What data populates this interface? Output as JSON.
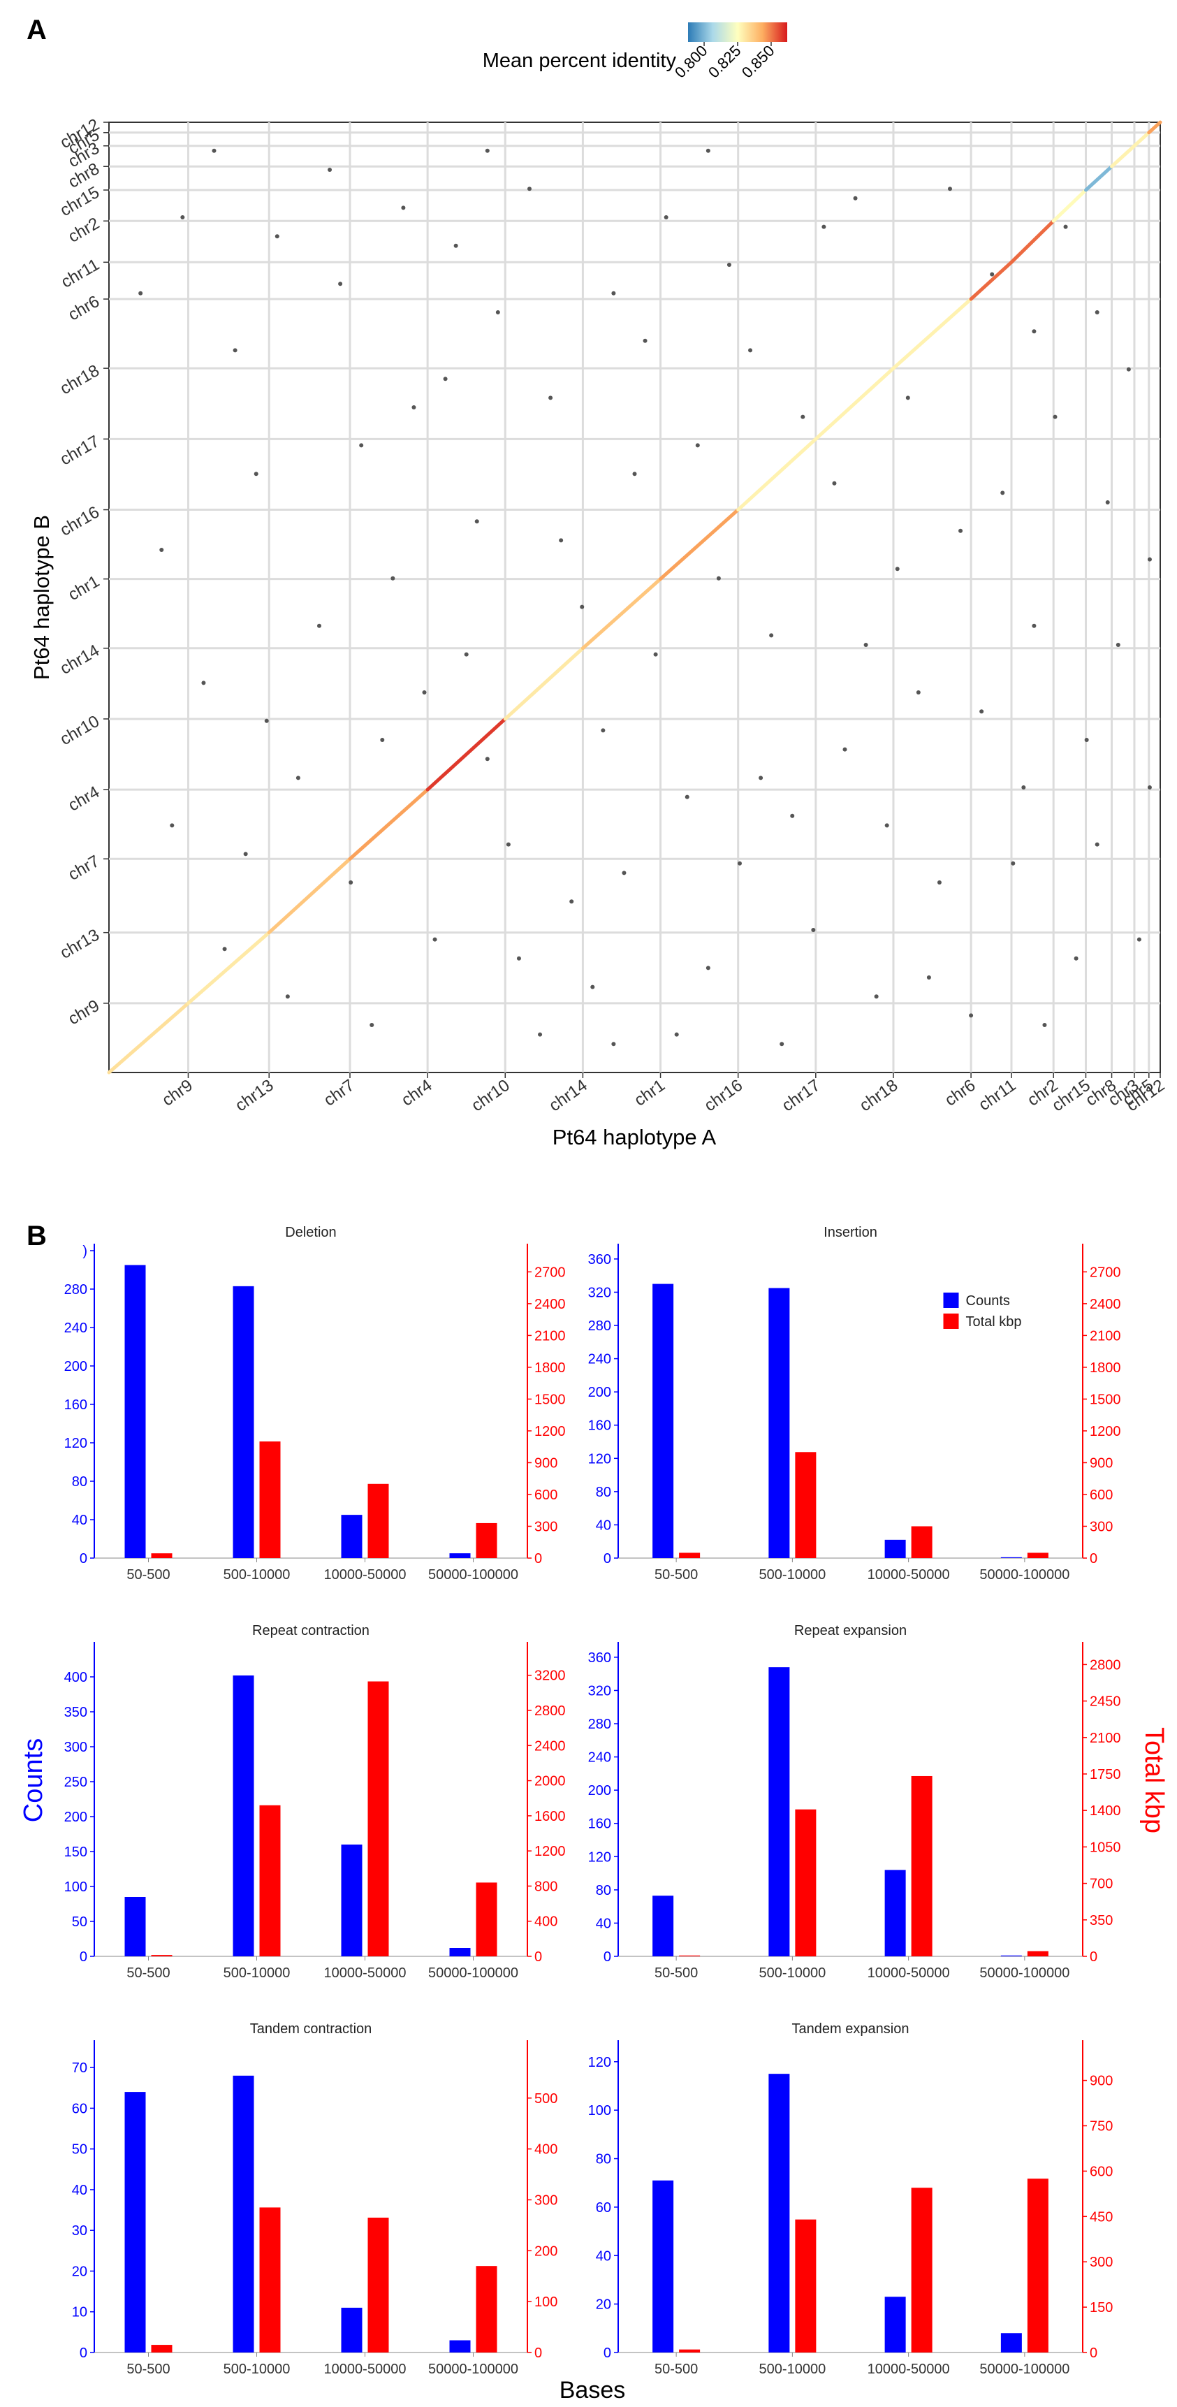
{
  "panel_a": {
    "label": "A",
    "colorbar": {
      "title": "Mean percent identity",
      "ticks": [
        "0.800",
        "0.825",
        "0.850"
      ],
      "range": [
        0.788,
        0.862
      ],
      "colors": [
        "#2c7bb6",
        "#abd9e9",
        "#ffffbf",
        "#fdae61",
        "#d7191c"
      ]
    },
    "xlabel": "Pt64 haplotype A",
    "ylabel": "Pt64 haplotype B",
    "x_chromosomes": [
      "chr9",
      "chr13",
      "chr7",
      "chr4",
      "chr10",
      "chr14",
      "chr1",
      "chr16",
      "chr17",
      "chr18",
      "chr6",
      "chr11",
      "chr2",
      "chr15",
      "chr8",
      "chr3",
      "chr5",
      "chr12"
    ],
    "x_sizes": [
      49,
      50,
      50,
      48,
      48,
      48,
      48,
      48,
      48,
      48,
      48,
      25,
      26,
      20,
      16,
      14,
      9,
      7
    ],
    "y_chromosomes": [
      "chr9",
      "chr13",
      "chr7",
      "chr4",
      "chr10",
      "chr14",
      "chr1",
      "chr16",
      "chr17",
      "chr18",
      "chr6",
      "chr11",
      "chr2",
      "chr15",
      "chr8",
      "chr3",
      "chr5",
      "chr12"
    ],
    "y_sizes": [
      47,
      48,
      50,
      47,
      48,
      48,
      47,
      47,
      48,
      48,
      47,
      25,
      28,
      21,
      16,
      14,
      9,
      7
    ],
    "diagonal_segments": [
      {
        "chrom": "chr9",
        "identity": 0.832
      },
      {
        "chrom": "chr13",
        "identity": 0.83
      },
      {
        "chrom": "chr7",
        "identity": 0.838
      },
      {
        "chrom": "chr4",
        "identity": 0.845
      },
      {
        "chrom": "chr10",
        "identity": 0.858
      },
      {
        "chrom": "chr14",
        "identity": 0.83
      },
      {
        "chrom": "chr1",
        "identity": 0.838
      },
      {
        "chrom": "chr16",
        "identity": 0.845
      },
      {
        "chrom": "chr17",
        "identity": 0.828
      },
      {
        "chrom": "chr18",
        "identity": 0.828
      },
      {
        "chrom": "chr6",
        "identity": 0.828
      },
      {
        "chrom": "chr11",
        "identity": 0.852
      },
      {
        "chrom": "chr2",
        "identity": 0.852
      },
      {
        "chrom": "chr15",
        "identity": 0.826
      },
      {
        "chrom": "chr8",
        "identity": 0.8
      },
      {
        "chrom": "chr3",
        "identity": 0.828
      },
      {
        "chrom": "chr5",
        "identity": 0.828
      },
      {
        "chrom": "chr12",
        "identity": 0.845
      }
    ],
    "off_diagonal_hits": [
      [
        0.07,
        0.9
      ],
      [
        0.11,
        0.13
      ],
      [
        0.16,
        0.88
      ],
      [
        0.21,
        0.95
      ],
      [
        0.23,
        0.2
      ],
      [
        0.29,
        0.7
      ],
      [
        0.33,
        0.87
      ],
      [
        0.36,
        0.33
      ],
      [
        0.4,
        0.93
      ],
      [
        0.44,
        0.18
      ],
      [
        0.48,
        0.82
      ],
      [
        0.52,
        0.44
      ],
      [
        0.57,
        0.11
      ],
      [
        0.61,
        0.76
      ],
      [
        0.65,
        0.27
      ],
      [
        0.69,
        0.62
      ],
      [
        0.73,
        0.08
      ],
      [
        0.77,
        0.4
      ],
      [
        0.81,
        0.57
      ],
      [
        0.86,
        0.22
      ],
      [
        0.9,
        0.69
      ],
      [
        0.93,
        0.35
      ],
      [
        0.97,
        0.74
      ],
      [
        0.05,
        0.55
      ],
      [
        0.09,
        0.41
      ],
      [
        0.14,
        0.63
      ],
      [
        0.18,
        0.31
      ],
      [
        0.25,
        0.05
      ],
      [
        0.27,
        0.52
      ],
      [
        0.31,
        0.14
      ],
      [
        0.35,
        0.58
      ],
      [
        0.38,
        0.24
      ],
      [
        0.42,
        0.71
      ],
      [
        0.46,
        0.09
      ],
      [
        0.5,
        0.63
      ],
      [
        0.55,
        0.29
      ],
      [
        0.59,
        0.85
      ],
      [
        0.63,
        0.46
      ],
      [
        0.67,
        0.15
      ],
      [
        0.71,
        0.92
      ],
      [
        0.75,
        0.53
      ],
      [
        0.79,
        0.2
      ],
      [
        0.84,
        0.84
      ],
      [
        0.88,
        0.47
      ],
      [
        0.92,
        0.12
      ],
      [
        0.95,
        0.6
      ],
      [
        0.99,
        0.3
      ],
      [
        0.03,
        0.82
      ],
      [
        0.12,
        0.76
      ],
      [
        0.2,
        0.47
      ],
      [
        0.28,
        0.91
      ],
      [
        0.34,
        0.44
      ],
      [
        0.41,
        0.04
      ],
      [
        0.47,
        0.36
      ],
      [
        0.53,
        0.9
      ],
      [
        0.58,
        0.52
      ],
      [
        0.64,
        0.03
      ],
      [
        0.7,
        0.34
      ],
      [
        0.76,
        0.71
      ],
      [
        0.82,
        0.06
      ],
      [
        0.87,
        0.3
      ],
      [
        0.91,
        0.89
      ],
      [
        0.96,
        0.45
      ],
      [
        0.06,
        0.26
      ],
      [
        0.15,
        0.37
      ],
      [
        0.24,
        0.66
      ],
      [
        0.3,
        0.4
      ],
      [
        0.37,
        0.8
      ],
      [
        0.43,
        0.56
      ],
      [
        0.49,
        0.21
      ],
      [
        0.56,
        0.66
      ],
      [
        0.62,
        0.31
      ],
      [
        0.68,
        0.89
      ],
      [
        0.74,
        0.26
      ],
      [
        0.8,
        0.93
      ],
      [
        0.85,
        0.61
      ],
      [
        0.89,
        0.05
      ],
      [
        0.94,
        0.8
      ],
      [
        0.98,
        0.14
      ],
      [
        0.1,
        0.97
      ],
      [
        0.17,
        0.08
      ],
      [
        0.26,
        0.35
      ],
      [
        0.32,
        0.73
      ],
      [
        0.39,
        0.12
      ],
      [
        0.45,
        0.49
      ],
      [
        0.51,
        0.77
      ],
      [
        0.54,
        0.04
      ],
      [
        0.6,
        0.22
      ],
      [
        0.66,
        0.69
      ],
      [
        0.72,
        0.45
      ],
      [
        0.78,
        0.1
      ],
      [
        0.83,
        0.38
      ],
      [
        0.88,
        0.78
      ],
      [
        0.94,
        0.24
      ],
      [
        0.99,
        0.54
      ],
      [
        0.13,
        0.23
      ],
      [
        0.22,
        0.83
      ],
      [
        0.36,
        0.97
      ],
      [
        0.48,
        0.03
      ],
      [
        0.57,
        0.97
      ]
    ]
  },
  "panel_b": {
    "label": "B",
    "shared_xlabel": "Bases",
    "shared_left_label": "Counts",
    "shared_right_label": "Total kbp",
    "legend": {
      "counts": "Counts",
      "total": "Total kbp"
    },
    "counts_color": "#0000ff",
    "total_color": "#ff0000"
  },
  "chart_data": [
    {
      "type": "bar",
      "title": "Deletion",
      "categories": [
        "50-500",
        "500-10000",
        "10000-50000",
        "50000-100000"
      ],
      "series": [
        {
          "name": "Counts",
          "axis": "left",
          "values": [
            305,
            283,
            45,
            5
          ]
        },
        {
          "name": "Total kbp",
          "axis": "right",
          "values": [
            45,
            1100,
            700,
            330
          ]
        }
      ],
      "left_ylim": [
        0,
        320
      ],
      "left_ticks": [
        "0",
        "40",
        "80",
        "120",
        "160",
        "200",
        "240",
        "280",
        ")"
      ],
      "right_ylim": [
        0,
        2900
      ],
      "right_ticks": [
        "0",
        "300",
        "600",
        "900",
        "1200",
        "1500",
        "1800",
        "2100",
        "2400",
        "2700"
      ]
    },
    {
      "type": "bar",
      "title": "Insertion",
      "categories": [
        "50-500",
        "500-10000",
        "10000-50000",
        "50000-100000"
      ],
      "series": [
        {
          "name": "Counts",
          "axis": "left",
          "values": [
            330,
            325,
            22,
            1
          ]
        },
        {
          "name": "Total kbp",
          "axis": "right",
          "values": [
            50,
            1000,
            300,
            50
          ]
        }
      ],
      "left_ylim": [
        0,
        370
      ],
      "left_ticks": [
        "0",
        "40",
        "80",
        "120",
        "160",
        "200",
        "240",
        "280",
        "320",
        "360"
      ],
      "right_ylim": [
        0,
        2900
      ],
      "right_ticks": [
        "0",
        "300",
        "600",
        "900",
        "1200",
        "1500",
        "1800",
        "2100",
        "2400",
        "2700"
      ],
      "legend": true
    },
    {
      "type": "bar",
      "title": "Repeat contraction",
      "categories": [
        "50-500",
        "500-10000",
        "10000-50000",
        "50000-100000"
      ],
      "series": [
        {
          "name": "Counts",
          "axis": "left",
          "values": [
            85,
            402,
            160,
            12
          ]
        },
        {
          "name": "Total kbp",
          "axis": "right",
          "values": [
            15,
            1720,
            3130,
            840
          ]
        }
      ],
      "left_ylim": [
        0,
        440
      ],
      "left_ticks": [
        "0",
        "50",
        "100",
        "150",
        "200",
        "250",
        "300",
        "350",
        "400"
      ],
      "right_ylim": [
        0,
        3500
      ],
      "right_ticks": [
        "0",
        "400",
        "800",
        "1200",
        "1600",
        "2000",
        "2400",
        "2800",
        "3200"
      ]
    },
    {
      "type": "bar",
      "title": "Repeat expansion",
      "categories": [
        "50-500",
        "500-10000",
        "10000-50000",
        "50000-100000"
      ],
      "series": [
        {
          "name": "Counts",
          "axis": "left",
          "values": [
            73,
            348,
            104,
            1
          ]
        },
        {
          "name": "Total kbp",
          "axis": "right",
          "values": [
            8,
            1410,
            1730,
            50
          ]
        }
      ],
      "left_ylim": [
        0,
        370
      ],
      "left_ticks": [
        "0",
        "40",
        "80",
        "120",
        "160",
        "200",
        "240",
        "280",
        "320",
        "360"
      ],
      "right_ylim": [
        0,
        2950
      ],
      "right_ticks": [
        "0",
        "350",
        "700",
        "1050",
        "1400",
        "1750",
        "2100",
        "2450",
        "2800"
      ]
    },
    {
      "type": "bar",
      "title": "Tandem contraction",
      "categories": [
        "50-500",
        "500-10000",
        "10000-50000",
        "50000-100000"
      ],
      "series": [
        {
          "name": "Counts",
          "axis": "left",
          "values": [
            64,
            68,
            11,
            3
          ]
        },
        {
          "name": "Total kbp",
          "axis": "right",
          "values": [
            15,
            285,
            265,
            170
          ]
        }
      ],
      "left_ylim": [
        0,
        75
      ],
      "left_ticks": [
        "0",
        "10",
        "20",
        "30",
        "40",
        "50",
        "60",
        "70"
      ],
      "right_ylim": [
        0,
        600
      ],
      "right_ticks": [
        "0",
        "100",
        "200",
        "300",
        "400",
        "500"
      ]
    },
    {
      "type": "bar",
      "title": "Tandem expansion",
      "categories": [
        "50-500",
        "500-10000",
        "10000-50000",
        "50000-100000"
      ],
      "series": [
        {
          "name": "Counts",
          "axis": "left",
          "values": [
            71,
            115,
            23,
            8
          ]
        },
        {
          "name": "Total kbp",
          "axis": "right",
          "values": [
            10,
            440,
            545,
            575
          ]
        }
      ],
      "left_ylim": [
        0,
        126
      ],
      "left_ticks": [
        "0",
        "20",
        "40",
        "60",
        "80",
        "100",
        "120"
      ],
      "right_ylim": [
        0,
        1010
      ],
      "right_ticks": [
        "0",
        "150",
        "300",
        "450",
        "600",
        "750",
        "900"
      ]
    }
  ]
}
